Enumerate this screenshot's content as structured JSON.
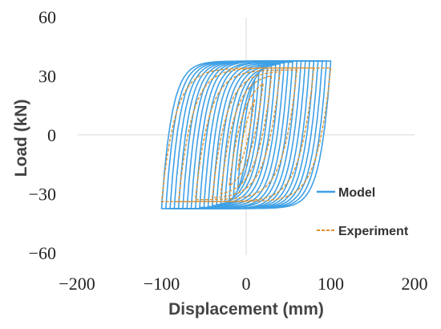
{
  "chart_data": {
    "type": "line",
    "title": "",
    "xlabel": "Displacement (mm)",
    "ylabel": "Load (kN)",
    "xlim": [
      -200,
      200
    ],
    "ylim": [
      -60,
      60
    ],
    "x_ticks": [
      "−200",
      "−100",
      "0",
      "100",
      "200"
    ],
    "y_ticks": [
      "60",
      "30",
      "0",
      "−30",
      "−60"
    ],
    "x_tick_values": [
      -200,
      -100,
      0,
      100,
      200
    ],
    "y_tick_values": [
      60,
      30,
      0,
      -30,
      -60
    ],
    "grid": false,
    "legend_position": "bottom-right",
    "series": [
      {
        "name": "Model",
        "color": "#3fa0e6",
        "line_style": "solid",
        "amplitudes": [
          10,
          15,
          20,
          25,
          30,
          35,
          40,
          45,
          50,
          55,
          60,
          65,
          70,
          75,
          80,
          85,
          90,
          95,
          100
        ],
        "peak_loads": [
          28,
          31,
          33,
          34,
          35,
          35.5,
          36,
          36.5,
          37,
          37,
          37.5,
          37.5,
          37.5,
          37.5,
          37.5,
          37.5,
          37.5,
          37.5,
          37.5
        ],
        "yield_displacement": 12
      },
      {
        "name": "Experiment",
        "color": "#e0912e",
        "line_style": "dashed",
        "amplitudes": [
          10,
          20,
          30,
          40,
          60,
          80,
          100
        ],
        "peak_loads": [
          18,
          26,
          30,
          32,
          33,
          34,
          34
        ],
        "yield_displacement": 16
      }
    ]
  }
}
